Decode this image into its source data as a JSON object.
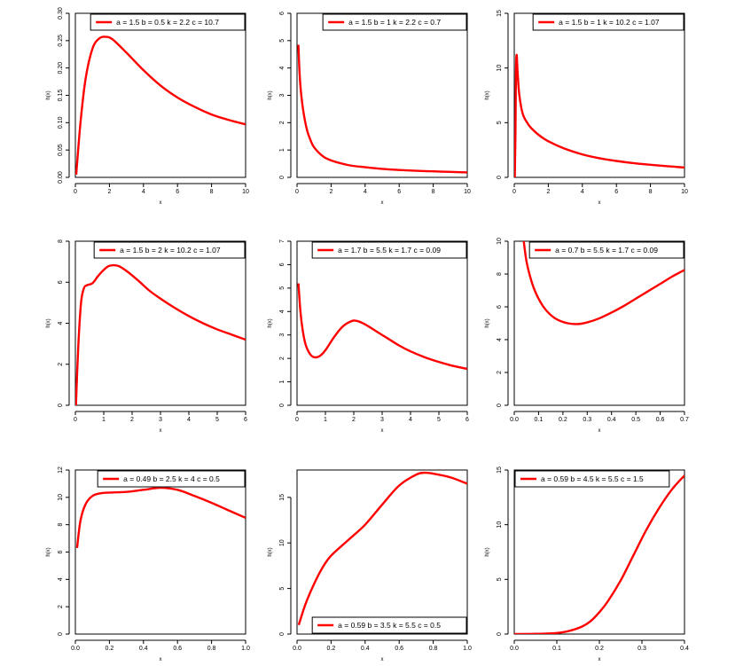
{
  "figure": {
    "curve_color": "#ff0000",
    "axis_color": "#000000"
  },
  "chart_data": [
    {
      "type": "line",
      "xlabel": "x",
      "ylabel": "h(x)",
      "xlim": [
        0,
        10
      ],
      "ylim": [
        0,
        0.3
      ],
      "xticks": [
        0,
        2,
        4,
        6,
        8,
        10
      ],
      "yticks": [
        "0.00",
        "0.05",
        "0.10",
        "0.15",
        "0.20",
        "0.25",
        "0.30"
      ],
      "legend_position": "top-right",
      "series": [
        {
          "name": "a = 1.5  b = 0.5  k = 2.2  c = 10.7",
          "x": [
            0.05,
            0.3,
            0.6,
            1.0,
            1.4,
            1.8,
            2.2,
            3.0,
            4.0,
            5.0,
            6.0,
            7.0,
            8.0,
            9.0,
            10.0
          ],
          "y": [
            0.005,
            0.1,
            0.18,
            0.235,
            0.254,
            0.257,
            0.252,
            0.228,
            0.196,
            0.168,
            0.146,
            0.129,
            0.115,
            0.105,
            0.097
          ]
        }
      ]
    },
    {
      "type": "line",
      "xlabel": "x",
      "ylabel": "h(x)",
      "xlim": [
        0,
        10
      ],
      "ylim": [
        0,
        6
      ],
      "xticks": [
        0,
        2,
        4,
        6,
        8,
        10
      ],
      "yticks": [
        "0",
        "1",
        "2",
        "3",
        "4",
        "5",
        "6"
      ],
      "legend_position": "top-right",
      "series": [
        {
          "name": "a = 1.5  b = 1  k = 2.2  c = 0.7",
          "x": [
            0.08,
            0.15,
            0.25,
            0.4,
            0.6,
            0.8,
            1.0,
            1.5,
            2,
            3,
            4,
            5,
            6,
            7,
            8,
            9,
            10
          ],
          "y": [
            4.85,
            3.8,
            3.0,
            2.3,
            1.7,
            1.35,
            1.1,
            0.78,
            0.62,
            0.45,
            0.37,
            0.31,
            0.27,
            0.24,
            0.22,
            0.2,
            0.18
          ]
        }
      ]
    },
    {
      "type": "line",
      "xlabel": "x",
      "ylabel": "h(x)",
      "xlim": [
        0,
        10
      ],
      "ylim": [
        0,
        15
      ],
      "xticks": [
        0,
        2,
        4,
        6,
        8,
        10
      ],
      "yticks": [
        "0",
        "5",
        "10",
        "15"
      ],
      "legend_position": "top-right",
      "series": [
        {
          "name": "a = 1.5  b = 1  k = 10.2  c = 1.07",
          "x": [
            0.03,
            0.07,
            0.1,
            0.14,
            0.2,
            0.3,
            0.5,
            0.8,
            1.0,
            1.5,
            2,
            3,
            4,
            5,
            6,
            7,
            8,
            9,
            10
          ],
          "y": [
            0.0,
            4.0,
            9.5,
            11.2,
            9.5,
            7.5,
            5.8,
            4.9,
            4.5,
            3.8,
            3.3,
            2.6,
            2.1,
            1.75,
            1.5,
            1.3,
            1.15,
            1.02,
            0.9
          ]
        }
      ]
    },
    {
      "type": "line",
      "xlabel": "x",
      "ylabel": "h(x)",
      "xlim": [
        0,
        6
      ],
      "ylim": [
        0,
        8
      ],
      "xticks": [
        0,
        1,
        2,
        3,
        4,
        5,
        6
      ],
      "yticks": [
        "0",
        "2",
        "4",
        "6",
        "8"
      ],
      "legend_position": "top-right",
      "series": [
        {
          "name": "a = 1.5  b = 2  k = 10.2  c = 1.07",
          "x": [
            0.02,
            0.1,
            0.2,
            0.3,
            0.4,
            0.6,
            0.8,
            1.0,
            1.2,
            1.5,
            1.8,
            2.2,
            2.6,
            3,
            3.5,
            4,
            4.5,
            5,
            5.5,
            6
          ],
          "y": [
            0.0,
            2.8,
            5.0,
            5.7,
            5.85,
            5.95,
            6.3,
            6.6,
            6.8,
            6.8,
            6.55,
            6.1,
            5.6,
            5.2,
            4.75,
            4.35,
            4.0,
            3.7,
            3.45,
            3.2
          ]
        }
      ]
    },
    {
      "type": "line",
      "xlabel": "x",
      "ylabel": "h(x)",
      "xlim": [
        0,
        6
      ],
      "ylim": [
        0,
        7
      ],
      "xticks": [
        0,
        1,
        2,
        3,
        4,
        5,
        6
      ],
      "yticks": [
        "0",
        "1",
        "2",
        "3",
        "4",
        "5",
        "6",
        "7"
      ],
      "legend_position": "top-right",
      "series": [
        {
          "name": "a = 1.7  b = 5.5  k = 1.7  c = 0.09",
          "x": [
            0.05,
            0.12,
            0.2,
            0.3,
            0.45,
            0.6,
            0.8,
            1.0,
            1.3,
            1.6,
            1.9,
            2.1,
            2.4,
            2.8,
            3.2,
            3.6,
            4,
            4.5,
            5,
            5.5,
            6
          ],
          "y": [
            5.2,
            4.0,
            3.2,
            2.6,
            2.2,
            2.05,
            2.1,
            2.35,
            2.9,
            3.35,
            3.58,
            3.6,
            3.45,
            3.15,
            2.85,
            2.55,
            2.3,
            2.05,
            1.85,
            1.68,
            1.55
          ]
        }
      ]
    },
    {
      "type": "line",
      "xlabel": "x",
      "ylabel": "h(x)",
      "xlim": [
        0,
        0.7
      ],
      "ylim": [
        0,
        10
      ],
      "xticks": [
        "0.0",
        "0.1",
        "0.2",
        "0.3",
        "0.4",
        "0.5",
        "0.6",
        "0.7"
      ],
      "yticks": [
        "0",
        "2",
        "4",
        "6",
        "8",
        "10"
      ],
      "legend_position": "top-right",
      "series": [
        {
          "name": "a = 0.7  b = 5.5  k = 1.7  c = 0.09",
          "x": [
            0.035,
            0.05,
            0.07,
            0.09,
            0.12,
            0.15,
            0.18,
            0.22,
            0.26,
            0.3,
            0.35,
            0.4,
            0.45,
            0.5,
            0.55,
            0.6,
            0.65,
            0.7
          ],
          "y": [
            10.5,
            8.8,
            7.6,
            6.8,
            6.0,
            5.5,
            5.2,
            5.0,
            4.95,
            5.05,
            5.3,
            5.65,
            6.05,
            6.5,
            6.95,
            7.4,
            7.85,
            8.25
          ]
        }
      ]
    },
    {
      "type": "line",
      "xlabel": "x",
      "ylabel": "h(x)",
      "xlim": [
        0,
        1
      ],
      "ylim": [
        0,
        12
      ],
      "xticks": [
        "0.0",
        "0.2",
        "0.4",
        "0.6",
        "0.8",
        "1.0"
      ],
      "yticks": [
        "0",
        "2",
        "4",
        "6",
        "8",
        "10",
        "12"
      ],
      "legend_position": "top-right",
      "series": [
        {
          "name": "a = 0.49  b = 2.5  k = 4  c = 0.5",
          "x": [
            0.01,
            0.03,
            0.06,
            0.1,
            0.15,
            0.2,
            0.3,
            0.4,
            0.5,
            0.6,
            0.7,
            0.8,
            0.9,
            1.0
          ],
          "y": [
            6.3,
            8.3,
            9.5,
            10.1,
            10.3,
            10.35,
            10.4,
            10.55,
            10.7,
            10.55,
            10.1,
            9.6,
            9.05,
            8.5
          ]
        }
      ]
    },
    {
      "type": "line",
      "xlabel": "x",
      "ylabel": "h(x)",
      "xlim": [
        0,
        1
      ],
      "ylim": [
        0,
        18
      ],
      "xticks": [
        "0.0",
        "0.2",
        "0.4",
        "0.6",
        "0.8",
        "1.0"
      ],
      "yticks": [
        "0",
        "5",
        "10",
        "15"
      ],
      "legend_position": "bottom-right",
      "series": [
        {
          "name": "a = 0.59  b = 3.5  k = 5.5  c = 0.5",
          "x": [
            0.01,
            0.05,
            0.1,
            0.15,
            0.2,
            0.3,
            0.4,
            0.5,
            0.6,
            0.7,
            0.75,
            0.8,
            0.9,
            1.0
          ],
          "y": [
            1.0,
            3.3,
            5.5,
            7.3,
            8.6,
            10.3,
            12.0,
            14.2,
            16.3,
            17.5,
            17.7,
            17.6,
            17.2,
            16.5
          ]
        }
      ]
    },
    {
      "type": "line",
      "xlabel": "x",
      "ylabel": "h(x)",
      "xlim": [
        0,
        0.4
      ],
      "ylim": [
        0,
        15
      ],
      "xticks": [
        "0.0",
        "0.1",
        "0.2",
        "0.3",
        "0.4"
      ],
      "yticks": [
        "0",
        "5",
        "10",
        "15"
      ],
      "legend_position": "top-left",
      "series": [
        {
          "name": "a = 0.59  b = 4.5  k = 5.5  c = 1.5",
          "x": [
            0.0,
            0.05,
            0.1,
            0.13,
            0.16,
            0.18,
            0.2,
            0.22,
            0.25,
            0.28,
            0.31,
            0.34,
            0.37,
            0.4
          ],
          "y": [
            0.0,
            0.02,
            0.1,
            0.3,
            0.7,
            1.2,
            2.0,
            3.0,
            4.9,
            7.2,
            9.5,
            11.5,
            13.2,
            14.5
          ]
        }
      ]
    }
  ]
}
